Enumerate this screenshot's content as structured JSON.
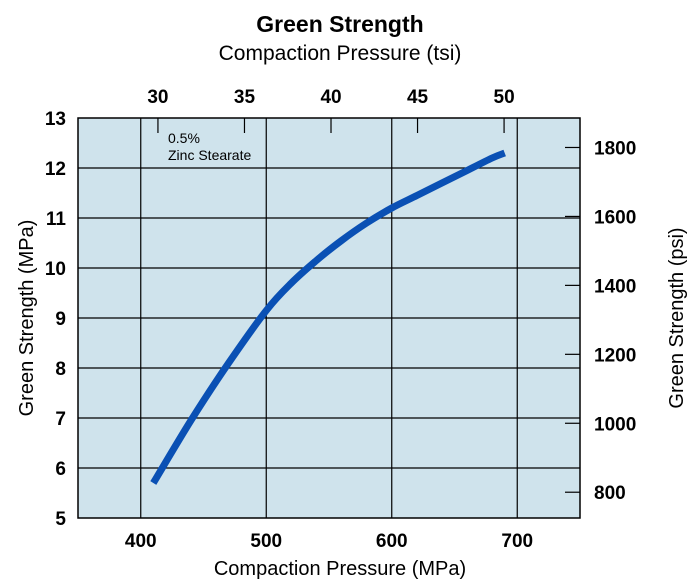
{
  "chart_data": {
    "type": "line",
    "title": "Green Strength",
    "top_axis": {
      "label": "Compaction Pressure (tsi)",
      "ticks": [
        30,
        35,
        40,
        45,
        50
      ],
      "factor_mpa_per_tsi": 13.79
    },
    "xlabel": "Compaction Pressure (MPa)",
    "xlim": [
      350,
      750
    ],
    "xticks": [
      400,
      500,
      600,
      700
    ],
    "ylabel": "Green Strength (MPa)",
    "ylim": [
      5,
      13
    ],
    "yticks": [
      5,
      6,
      7,
      8,
      9,
      10,
      11,
      12,
      13
    ],
    "right_axis": {
      "label": "Green Strength (psi)",
      "ticks": [
        800,
        1000,
        1200,
        1400,
        1600,
        1800
      ],
      "factor_psi_per_mpa": 145.04
    },
    "grid": true,
    "annotation_lines": [
      "0.5%",
      "Zinc Stearate"
    ],
    "series": [
      {
        "x": [
          410,
          440,
          470,
          500,
          520,
          540,
          560,
          580,
          600,
          620,
          640,
          660,
          680,
          690
        ],
        "y": [
          5.7,
          6.95,
          8.1,
          9.15,
          9.7,
          10.15,
          10.55,
          10.9,
          11.2,
          11.45,
          11.7,
          11.95,
          12.2,
          12.3
        ],
        "color": "#0a50b4"
      }
    ],
    "plot_background": "#cfe3ec"
  }
}
